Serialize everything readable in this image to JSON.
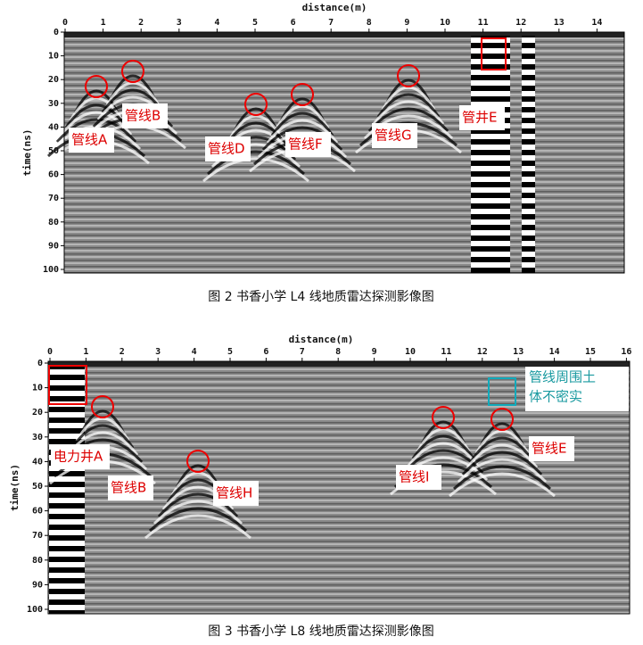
{
  "figures": [
    {
      "x_label": "distance(m)",
      "y_label": "time(ns)",
      "x_ticks": [
        0,
        1,
        2,
        3,
        4,
        5,
        6,
        7,
        8,
        9,
        10,
        11,
        12,
        13,
        14
      ],
      "y_ticks": [
        0,
        10,
        20,
        30,
        40,
        50,
        60,
        70,
        80,
        90,
        100
      ],
      "annotations": [
        "管线A",
        "管线B",
        "管线D",
        "管线F",
        "管线G",
        "管井E"
      ],
      "caption": "图 2  书香小学 L4 线地质雷达探测影像图"
    },
    {
      "x_label": "distance(m)",
      "y_label": "time(ns)",
      "x_ticks": [
        0,
        1,
        2,
        3,
        4,
        5,
        6,
        7,
        8,
        9,
        10,
        11,
        12,
        13,
        14,
        15,
        16
      ],
      "y_ticks": [
        0,
        10,
        20,
        30,
        40,
        50,
        60,
        70,
        80,
        90,
        100
      ],
      "annotations": [
        "电力井A",
        "管线B",
        "管线H",
        "管线I",
        "管线E"
      ],
      "note_lines": [
        "管线周围土",
        "体不密实"
      ],
      "caption": "图 3  书香小学 L8 线地质雷达探测影像图"
    }
  ]
}
